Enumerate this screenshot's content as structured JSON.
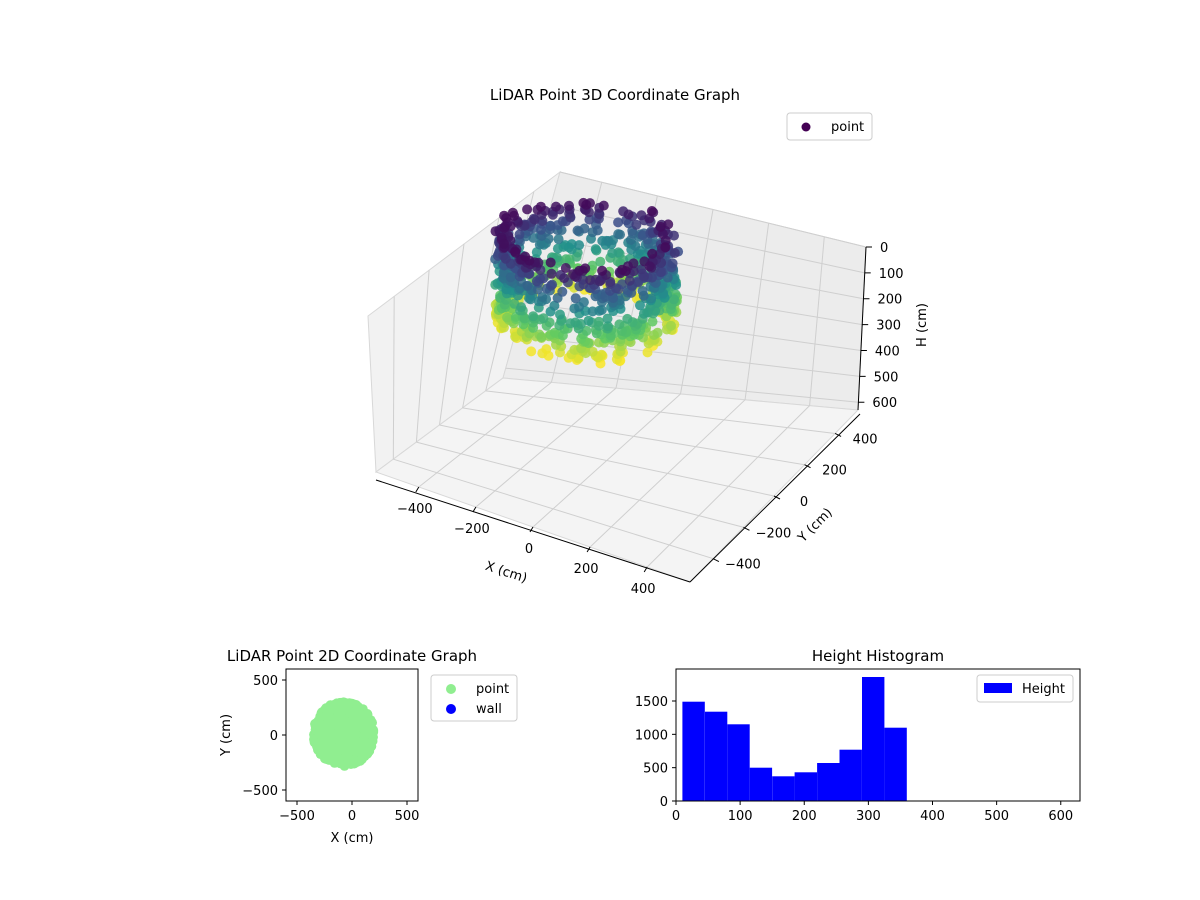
{
  "chart_data": [
    {
      "type": "scatter3d",
      "title": "LiDAR Point 3D Coordinate Graph",
      "xlabel": "X (cm)",
      "ylabel": "Y (cm)",
      "zlabel": "H (cm)",
      "xlim": [
        -550,
        550
      ],
      "ylim": [
        -550,
        550
      ],
      "zlim": [
        0,
        630
      ],
      "z_inverted": true,
      "x_ticks": [
        -400,
        -200,
        0,
        200,
        400
      ],
      "y_ticks": [
        -400,
        -200,
        0,
        200,
        400
      ],
      "z_ticks": [
        0,
        100,
        200,
        300,
        400,
        500,
        600
      ],
      "x_tick_labels": [
        "−400",
        "−200",
        "0",
        "200",
        "400"
      ],
      "y_tick_labels": [
        "−400",
        "−200",
        "0",
        "200",
        "400"
      ],
      "z_tick_labels": [
        "0",
        "100",
        "200",
        "300",
        "400",
        "500",
        "600"
      ],
      "colormap": "viridis",
      "color_by": "height",
      "grid": true,
      "legend": {
        "location": "top-right",
        "entries": [
          {
            "label": "point",
            "color": "#440154"
          }
        ]
      },
      "series": [
        {
          "name": "point",
          "description_of_shape": "ring-shaped wall of points around the origin",
          "x_range": [
            -350,
            200
          ],
          "y_range": [
            -280,
            300
          ],
          "h_range": [
            10,
            360
          ]
        }
      ]
    },
    {
      "type": "scatter",
      "title": "LiDAR Point 2D Coordinate Graph",
      "xlabel": "X (cm)",
      "ylabel": "Y (cm)",
      "xlim": [
        -600,
        600
      ],
      "ylim": [
        -600,
        600
      ],
      "x_ticks": [
        -500,
        0,
        500
      ],
      "y_ticks": [
        -500,
        0,
        500
      ],
      "x_tick_labels": [
        "−500",
        "0",
        "500"
      ],
      "y_tick_labels": [
        "−500",
        "0",
        "500"
      ],
      "legend": {
        "location": "outside-right",
        "entries": [
          {
            "label": "point",
            "color": "#90ee90"
          },
          {
            "label": "wall",
            "color": "#0000ff"
          }
        ]
      },
      "series": [
        {
          "name": "point",
          "color": "#90ee90",
          "x_range": [
            -350,
            200
          ],
          "y_range": [
            -280,
            300
          ]
        },
        {
          "name": "wall",
          "color": "#0000ff",
          "points": []
        }
      ]
    },
    {
      "type": "bar",
      "title": "Height Histogram",
      "xlim": [
        0,
        630
      ],
      "ylim": [
        0,
        1980
      ],
      "x_ticks": [
        0,
        100,
        200,
        300,
        400,
        500,
        600
      ],
      "y_ticks": [
        0,
        500,
        1000,
        1500
      ],
      "legend": {
        "location": "top-right",
        "entries": [
          {
            "label": "Height",
            "color": "#0000ff"
          }
        ]
      },
      "bins": [
        {
          "start": 10,
          "end": 45,
          "count": 1490
        },
        {
          "start": 45,
          "end": 80,
          "count": 1340
        },
        {
          "start": 80,
          "end": 115,
          "count": 1150
        },
        {
          "start": 115,
          "end": 150,
          "count": 500
        },
        {
          "start": 150,
          "end": 185,
          "count": 370
        },
        {
          "start": 185,
          "end": 220,
          "count": 430
        },
        {
          "start": 220,
          "end": 255,
          "count": 570
        },
        {
          "start": 255,
          "end": 290,
          "count": 770
        },
        {
          "start": 290,
          "end": 325,
          "count": 1860
        },
        {
          "start": 325,
          "end": 360,
          "count": 1100
        }
      ],
      "color": "#0000ff"
    }
  ]
}
